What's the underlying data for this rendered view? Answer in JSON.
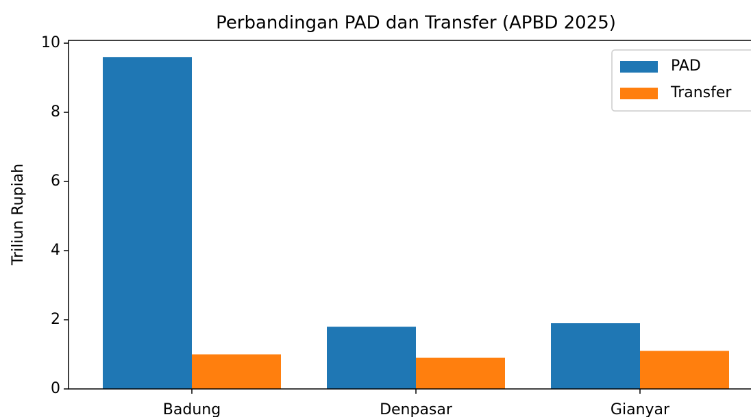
{
  "chart_data": {
    "type": "bar",
    "title": "Perbandingan PAD dan Transfer (APBD 2025)",
    "y_label": "Triliun Rupiah",
    "categories": [
      "Badung",
      "Denpasar",
      "Gianyar"
    ],
    "series": [
      {
        "name": "PAD",
        "color": "#1f77b4",
        "values": [
          9.6,
          1.8,
          1.9
        ]
      },
      {
        "name": "Transfer",
        "color": "#ff7f0e",
        "values": [
          1.0,
          0.9,
          1.1
        ]
      }
    ],
    "ylim": [
      0,
      10.08
    ],
    "yticks": [
      0,
      2,
      4,
      6,
      8,
      10
    ],
    "grid": false,
    "legend": "upper right"
  }
}
